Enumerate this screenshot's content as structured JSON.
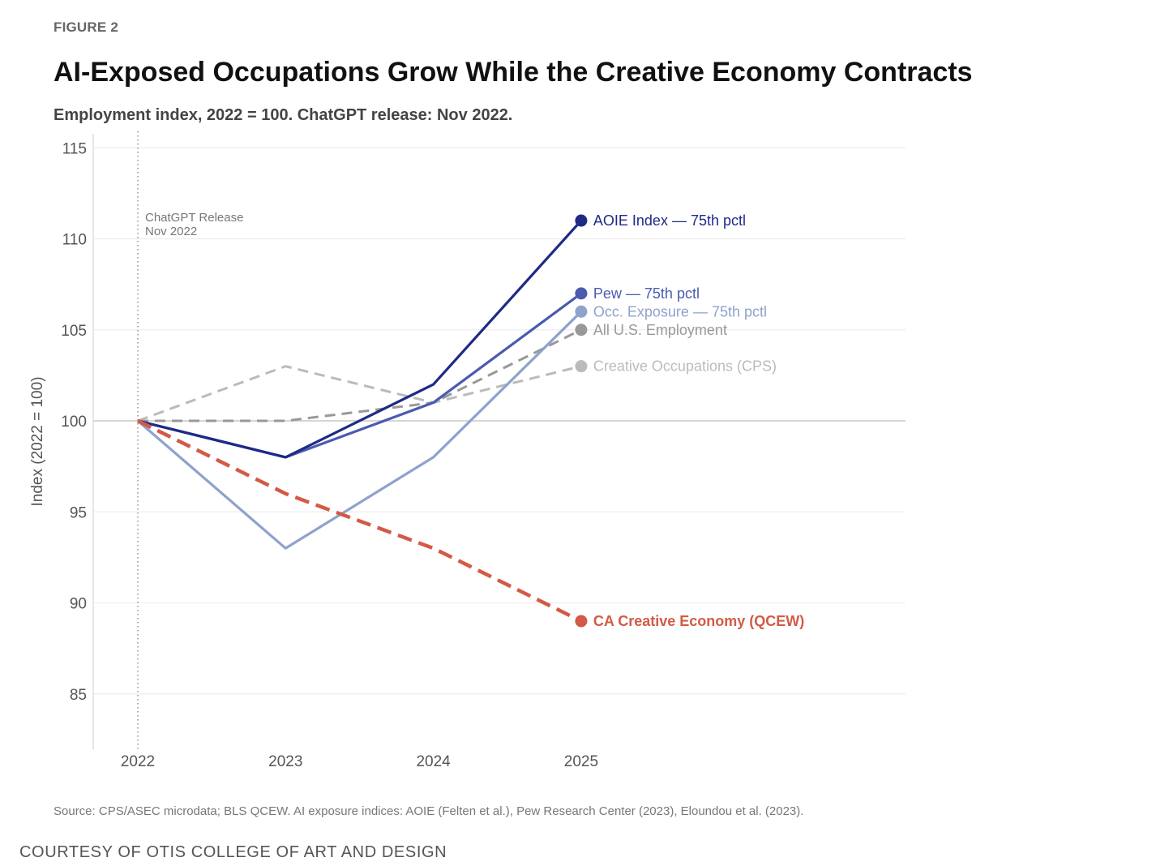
{
  "figure_label": "FIGURE 2",
  "title": "AI-Exposed Occupations Grow While the Creative Economy Contracts",
  "subtitle": "Employment index, 2022 = 100. ChatGPT release: Nov 2022.",
  "source": "Source: CPS/ASEC microdata; BLS QCEW. AI exposure indices: AOIE (Felten et al.), Pew Research Center (2023), Eloundou et al. (2023).",
  "courtesy": "COURTESY OF OTIS COLLEGE OF ART AND DESIGN",
  "chart_data": {
    "type": "line",
    "title": "AI-Exposed Occupations Grow While the Creative Economy Contracts",
    "subtitle": "Employment index, 2022 = 100. ChatGPT release: Nov 2022.",
    "xlabel": "",
    "ylabel": "Index (2022 = 100)",
    "x": [
      "2022",
      "2023",
      "2024",
      "2025"
    ],
    "ylim": [
      82,
      116
    ],
    "yticks": [
      85,
      90,
      95,
      100,
      105,
      110,
      115
    ],
    "grid": true,
    "reference_line": {
      "y": 100
    },
    "annotation": {
      "x": "2022",
      "lines": [
        "ChatGPT Release",
        "Nov 2022"
      ]
    },
    "legend": "direct-labels-right",
    "series": [
      {
        "name": "Creative Occupations (CPS)",
        "values": [
          100,
          103,
          101,
          103
        ],
        "color": "#bbbbbb",
        "dashed": true,
        "bold_label": false
      },
      {
        "name": "All U.S. Employment",
        "values": [
          100,
          100,
          101,
          105
        ],
        "color": "#999999",
        "dashed": true,
        "bold_label": false
      },
      {
        "name": "Occ. Exposure — 75th pctl",
        "values": [
          100,
          93,
          98,
          106
        ],
        "color": "#8ea2cc",
        "dashed": false,
        "bold_label": false
      },
      {
        "name": "Pew — 75th pctl",
        "values": [
          100,
          98,
          101,
          107
        ],
        "color": "#4a5bb0",
        "dashed": false,
        "bold_label": false
      },
      {
        "name": "AOIE Index — 75th pctl",
        "values": [
          100,
          98,
          102,
          111
        ],
        "color": "#1f2a85",
        "dashed": false,
        "bold_label": false
      },
      {
        "name": "CA Creative Economy (QCEW)",
        "values": [
          100,
          96,
          93,
          89
        ],
        "color": "#d35a46",
        "dashed": true,
        "bold_label": true
      }
    ]
  }
}
